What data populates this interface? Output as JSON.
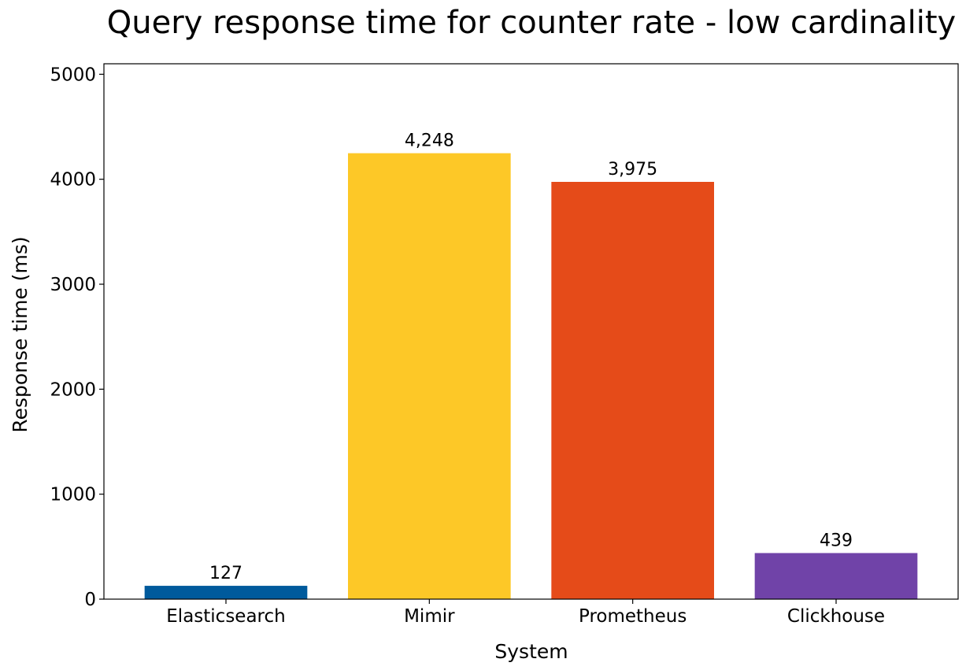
{
  "chart_data": {
    "type": "bar",
    "title": "Query response time for counter rate - low cardinality",
    "xlabel": "System",
    "ylabel": "Response time (ms)",
    "categories": [
      "Elasticsearch",
      "Mimir",
      "Prometheus",
      "Clickhouse"
    ],
    "values": [
      127,
      4248,
      3975,
      439
    ],
    "value_labels": [
      "127",
      "4,248",
      "3,975",
      "439"
    ],
    "colors": [
      "#005A9C",
      "#FDC827",
      "#E54B19",
      "#7043A8"
    ],
    "ylim": [
      0,
      5100
    ],
    "yticks": [
      0,
      1000,
      2000,
      3000,
      4000,
      5000
    ],
    "ytick_labels": [
      "0",
      "1000",
      "2000",
      "3000",
      "4000",
      "5000"
    ],
    "grid": false,
    "legend": "none"
  }
}
